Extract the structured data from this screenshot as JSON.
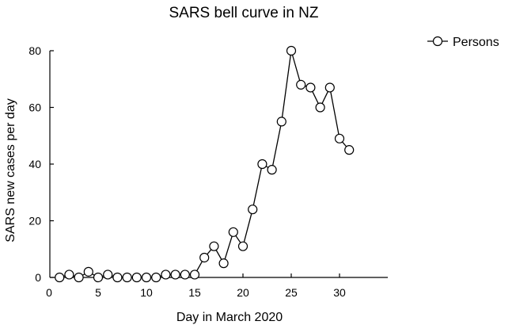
{
  "chart_data": {
    "type": "line",
    "title": "SARS bell curve in NZ",
    "xlabel": "Day in March 2020",
    "ylabel": "SARS new cases per day",
    "xlim": [
      0,
      35
    ],
    "ylim": [
      0,
      80
    ],
    "xticks": [
      0,
      5,
      10,
      15,
      20,
      25,
      30
    ],
    "xtick_labels": [
      "0",
      "5",
      "10",
      "15",
      "20",
      "25",
      "30"
    ],
    "yticks": [
      0,
      20,
      40,
      60,
      80
    ],
    "ytick_labels": [
      "0",
      "20",
      "40",
      "60",
      "80"
    ],
    "grid": false,
    "legend_position": "top-right",
    "marker": "open-circle",
    "line_color": "#000000",
    "series": [
      {
        "name": "Persons",
        "x": [
          1,
          2,
          3,
          4,
          5,
          6,
          7,
          8,
          9,
          10,
          11,
          12,
          13,
          14,
          15,
          16,
          17,
          18,
          19,
          20,
          21,
          22,
          23,
          24,
          25,
          26,
          27,
          28,
          29,
          30,
          31
        ],
        "y": [
          0,
          1,
          0,
          2,
          0,
          1,
          0,
          0,
          0,
          0,
          0,
          1,
          1,
          1,
          1,
          7,
          11,
          5,
          16,
          11,
          24,
          40,
          38,
          55,
          80,
          68,
          67,
          60,
          67,
          49,
          45
        ]
      }
    ]
  }
}
